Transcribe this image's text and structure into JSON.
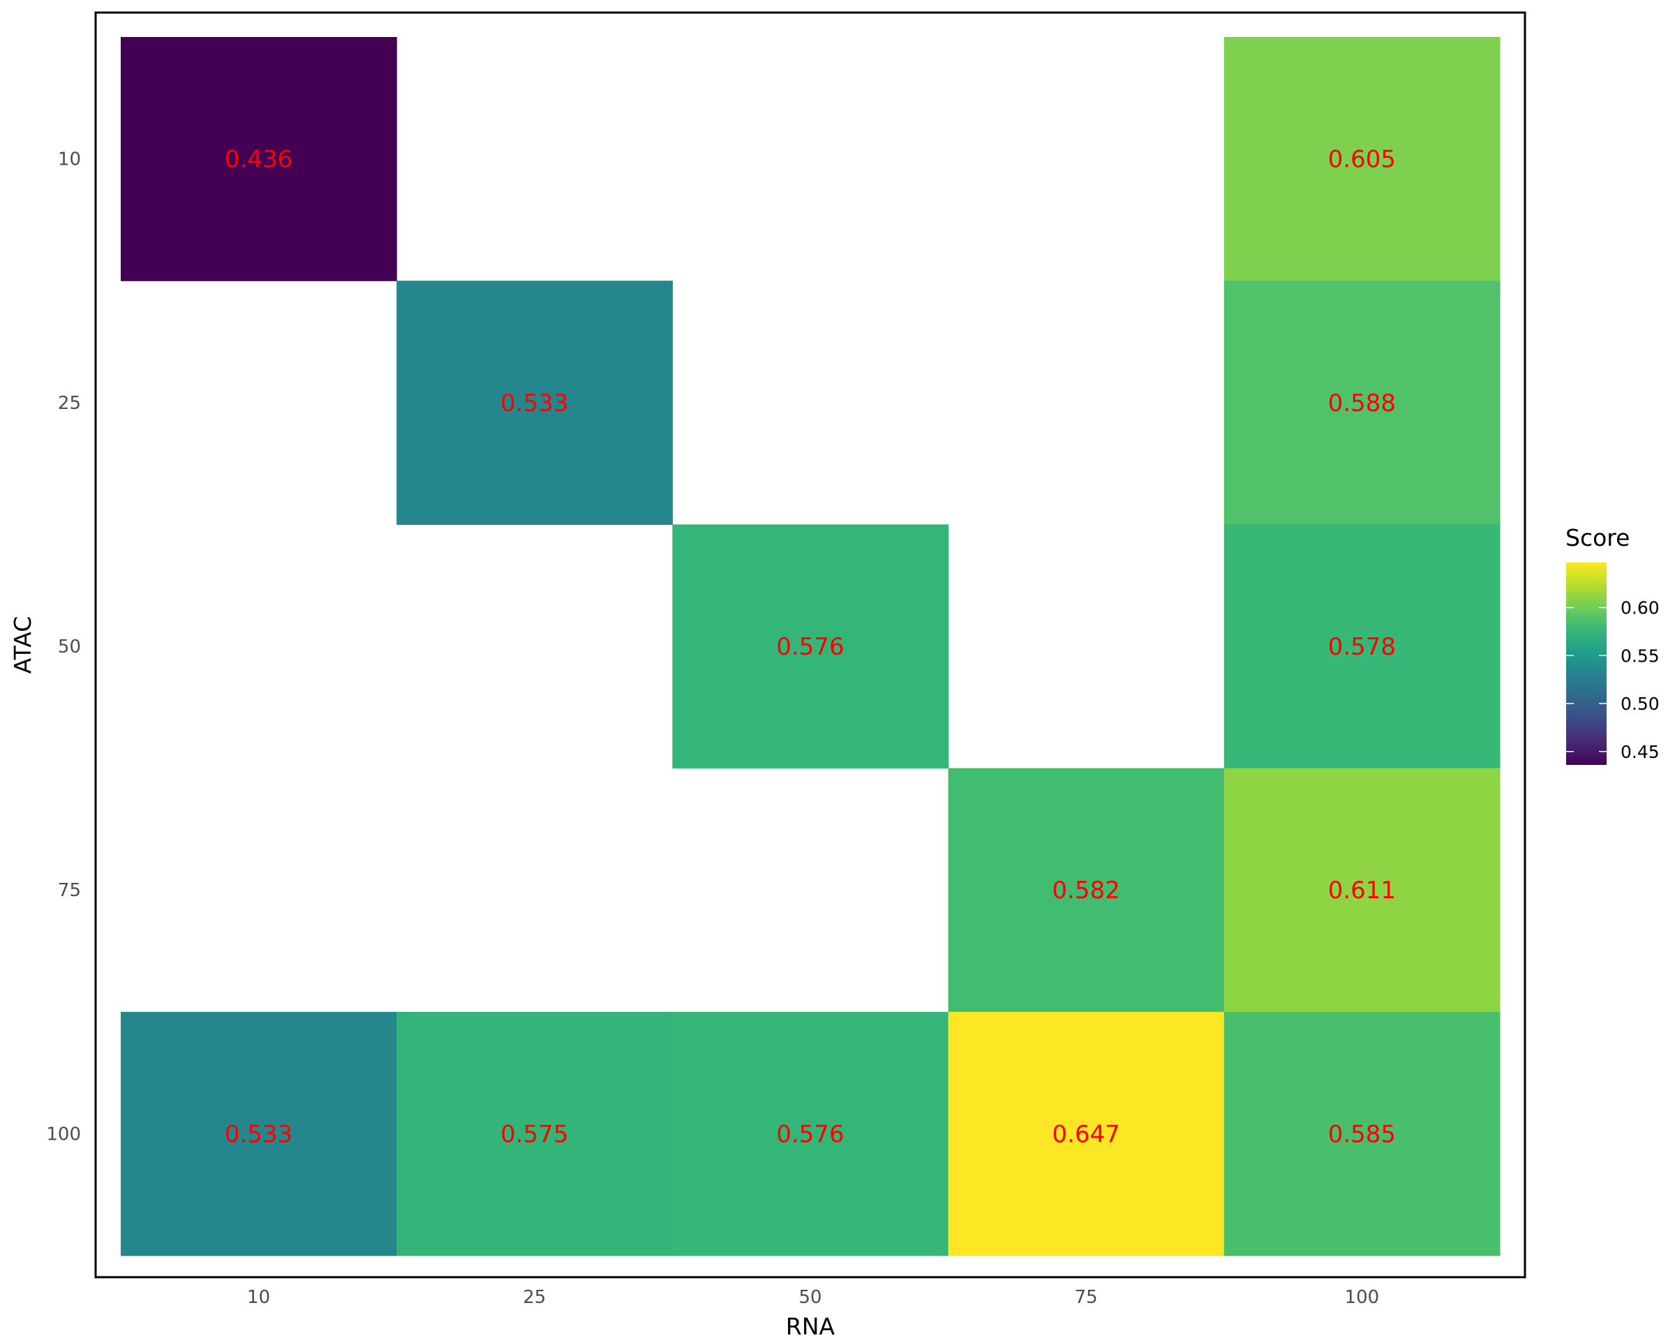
{
  "chart_data": {
    "type": "heatmap",
    "xlabel": "RNA",
    "ylabel": "ATAC",
    "x_categories": [
      "10",
      "25",
      "50",
      "75",
      "100"
    ],
    "y_categories": [
      "10",
      "25",
      "50",
      "75",
      "100"
    ],
    "cells": [
      {
        "x": "10",
        "y": "10",
        "value": 0.436,
        "label": "0.436"
      },
      {
        "x": "100",
        "y": "10",
        "value": 0.605,
        "label": "0.605"
      },
      {
        "x": "25",
        "y": "25",
        "value": 0.533,
        "label": "0.533"
      },
      {
        "x": "100",
        "y": "25",
        "value": 0.588,
        "label": "0.588"
      },
      {
        "x": "50",
        "y": "50",
        "value": 0.576,
        "label": "0.576"
      },
      {
        "x": "100",
        "y": "50",
        "value": 0.578,
        "label": "0.578"
      },
      {
        "x": "75",
        "y": "75",
        "value": 0.582,
        "label": "0.582"
      },
      {
        "x": "100",
        "y": "75",
        "value": 0.611,
        "label": "0.611"
      },
      {
        "x": "10",
        "y": "100",
        "value": 0.533,
        "label": "0.533"
      },
      {
        "x": "25",
        "y": "100",
        "value": 0.575,
        "label": "0.575"
      },
      {
        "x": "50",
        "y": "100",
        "value": 0.576,
        "label": "0.576"
      },
      {
        "x": "75",
        "y": "100",
        "value": 0.647,
        "label": "0.647"
      },
      {
        "x": "100",
        "y": "100",
        "value": 0.585,
        "label": "0.585"
      }
    ],
    "legend": {
      "title": "Score",
      "colormap": "viridis",
      "range": [
        0.436,
        0.647
      ],
      "ticks": [
        0.45,
        0.5,
        0.55,
        0.6
      ],
      "tick_labels": [
        "0.45",
        "0.50",
        "0.55",
        "0.60"
      ],
      "placement": "right"
    },
    "cell_label_color": "#ff0000",
    "grid": false,
    "panel_border": true
  }
}
